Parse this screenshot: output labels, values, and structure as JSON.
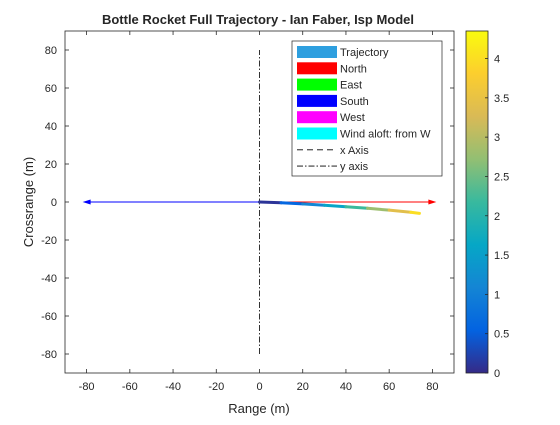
{
  "chart_data": {
    "type": "line",
    "title": "Bottle Rocket Full Trajectory - Ian Faber, Isp Model",
    "xlabel": "Range (m)",
    "ylabel": "Crossrange (m)",
    "xlim": [
      -90,
      90
    ],
    "ylim": [
      -90,
      90
    ],
    "xticks": [
      -80,
      -60,
      -40,
      -20,
      0,
      20,
      40,
      60,
      80
    ],
    "yticks": [
      -80,
      -60,
      -40,
      -20,
      0,
      20,
      40,
      60,
      80
    ],
    "grid": false,
    "legend_position": "top-right",
    "series": [
      {
        "name": "Trajectory",
        "color": "#2e9fdf",
        "x": [
          0,
          10,
          20,
          30,
          40,
          50,
          60,
          70,
          74
        ],
        "y": [
          0,
          -0.4,
          -1.0,
          -1.7,
          -2.5,
          -3.3,
          -4.3,
          -5.4,
          -6.0
        ],
        "colorscale_values": [
          0.1,
          0.6,
          1.1,
          1.6,
          2.2,
          2.8,
          3.4,
          4.0,
          4.3
        ]
      },
      {
        "name": "North",
        "color": "#ff0000",
        "kind": "arrow",
        "x": [
          0,
          80
        ],
        "y": [
          0,
          0
        ]
      },
      {
        "name": "East",
        "color": "#00ff00",
        "kind": "arrow",
        "x": [
          0,
          0
        ],
        "y": [
          0,
          0
        ]
      },
      {
        "name": "South",
        "color": "#0000ff",
        "kind": "arrow",
        "x": [
          0,
          -80
        ],
        "y": [
          0,
          0
        ]
      },
      {
        "name": "West",
        "color": "#ff00ff",
        "kind": "arrow",
        "x": [
          0,
          0
        ],
        "y": [
          0,
          0
        ]
      },
      {
        "name": "Wind aloft: from W",
        "color": "#00ffff",
        "kind": "arrow",
        "x": [
          0,
          0
        ],
        "y": [
          0,
          0
        ]
      },
      {
        "name": "x Axis",
        "color": "#000000",
        "kind": "dashed",
        "x": [
          0,
          0
        ],
        "y": [
          0,
          0
        ]
      },
      {
        "name": "y axis",
        "color": "#000000",
        "kind": "dashdot",
        "x": [
          0,
          0
        ],
        "y": [
          -80,
          80
        ]
      }
    ],
    "colorbar": {
      "range": [
        0,
        4.35
      ],
      "ticks": [
        0,
        0.5,
        1,
        1.5,
        2,
        2.5,
        3,
        3.5,
        4
      ],
      "tick_labels": [
        "0",
        "0.5",
        "1",
        "1.5",
        "2",
        "2.5",
        "3",
        "3.5",
        "4"
      ],
      "colormap": "parula"
    }
  }
}
